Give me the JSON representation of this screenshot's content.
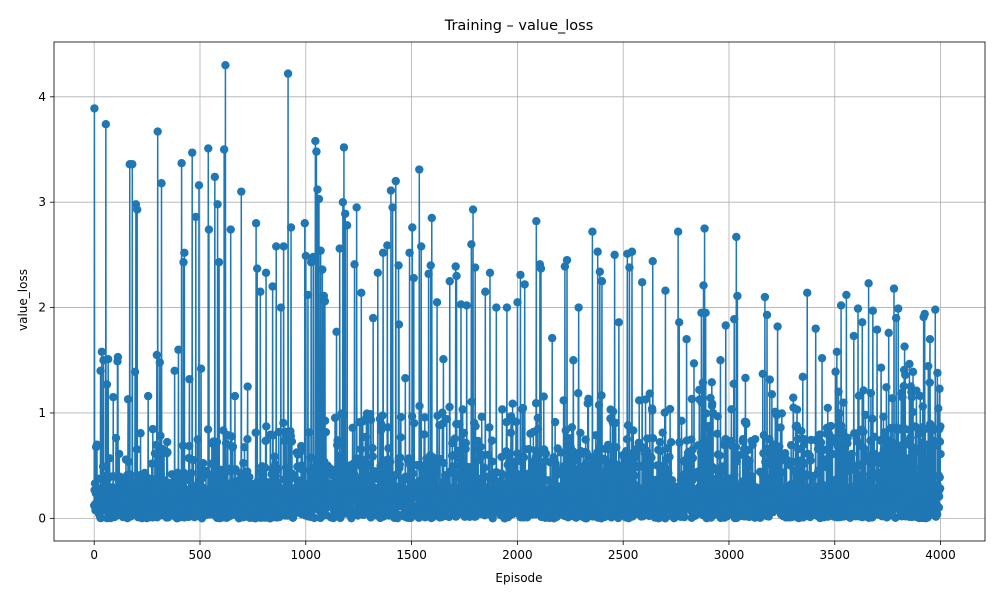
{
  "chart_data": {
    "type": "line",
    "title": "Training – value_loss",
    "xlabel": "Episode",
    "ylabel": "value_loss",
    "xlim": [
      -190,
      4210
    ],
    "ylim": [
      -0.215,
      4.52
    ],
    "xticks": [
      0,
      500,
      1000,
      1500,
      2000,
      2500,
      3000,
      3500,
      4000
    ],
    "yticks": [
      0,
      1,
      2,
      3,
      4
    ],
    "grid": true,
    "marker": "circle",
    "series": [
      {
        "color": "#1f77b4",
        "n_points": 4000,
        "x_range": [
          0,
          4000
        ],
        "baseline_level": 0.3,
        "spikes": [
          [
            1,
            3.89
          ],
          [
            30,
            1.4
          ],
          [
            36,
            1.58
          ],
          [
            44,
            1.5
          ],
          [
            55,
            3.74
          ],
          [
            60,
            1.27
          ],
          [
            66,
            1.51
          ],
          [
            90,
            1.15
          ],
          [
            110,
            1.49
          ],
          [
            112,
            1.53
          ],
          [
            160,
            1.13
          ],
          [
            168,
            3.36
          ],
          [
            180,
            3.36
          ],
          [
            193,
            1.39
          ],
          [
            197,
            2.98
          ],
          [
            203,
            2.93
          ],
          [
            255,
            1.16
          ],
          [
            296,
            1.55
          ],
          [
            300,
            3.67
          ],
          [
            310,
            1.48
          ],
          [
            318,
            3.18
          ],
          [
            380,
            1.4
          ],
          [
            398,
            1.6
          ],
          [
            413,
            3.37
          ],
          [
            422,
            2.43
          ],
          [
            426,
            2.52
          ],
          [
            450,
            1.32
          ],
          [
            463,
            3.47
          ],
          [
            480,
            2.86
          ],
          [
            495,
            3.16
          ],
          [
            505,
            1.42
          ],
          [
            539,
            3.51
          ],
          [
            542,
            2.74
          ],
          [
            570,
            3.24
          ],
          [
            583,
            2.98
          ],
          [
            590,
            2.43
          ],
          [
            614,
            3.5
          ],
          [
            620,
            4.3
          ],
          [
            645,
            2.74
          ],
          [
            665,
            1.16
          ],
          [
            695,
            3.1
          ],
          [
            725,
            1.25
          ],
          [
            765,
            2.8
          ],
          [
            770,
            2.37
          ],
          [
            785,
            2.15
          ],
          [
            812,
            2.33
          ],
          [
            843,
            2.2
          ],
          [
            860,
            2.58
          ],
          [
            882,
            2.0
          ],
          [
            895,
            2.58
          ],
          [
            916,
            4.22
          ],
          [
            930,
            2.76
          ],
          [
            995,
            2.8
          ],
          [
            1000,
            2.49
          ],
          [
            1010,
            2.12
          ],
          [
            1025,
            2.43
          ],
          [
            1035,
            2.48
          ],
          [
            1045,
            3.58
          ],
          [
            1050,
            3.48
          ],
          [
            1055,
            3.12
          ],
          [
            1062,
            3.03
          ],
          [
            1070,
            2.54
          ],
          [
            1078,
            2.36
          ],
          [
            1085,
            2.11
          ],
          [
            1090,
            2.06
          ],
          [
            1145,
            1.77
          ],
          [
            1160,
            2.56
          ],
          [
            1175,
            3.0
          ],
          [
            1180,
            3.52
          ],
          [
            1186,
            2.89
          ],
          [
            1195,
            2.78
          ],
          [
            1240,
            2.95
          ],
          [
            1230,
            2.41
          ],
          [
            1262,
            2.14
          ],
          [
            1318,
            1.9
          ],
          [
            1340,
            2.33
          ],
          [
            1365,
            2.52
          ],
          [
            1385,
            2.59
          ],
          [
            1402,
            3.11
          ],
          [
            1410,
            2.95
          ],
          [
            1425,
            3.2
          ],
          [
            1438,
            2.4
          ],
          [
            1440,
            1.84
          ],
          [
            1470,
            1.33
          ],
          [
            1490,
            2.52
          ],
          [
            1503,
            2.76
          ],
          [
            1510,
            2.28
          ],
          [
            1536,
            3.31
          ],
          [
            1545,
            2.58
          ],
          [
            1580,
            2.32
          ],
          [
            1590,
            2.4
          ],
          [
            1595,
            2.85
          ],
          [
            1620,
            2.05
          ],
          [
            1650,
            1.51
          ],
          [
            1680,
            2.25
          ],
          [
            1708,
            2.39
          ],
          [
            1712,
            2.3
          ],
          [
            1733,
            2.03
          ],
          [
            1760,
            2.02
          ],
          [
            1782,
            2.6
          ],
          [
            1790,
            2.93
          ],
          [
            1800,
            2.38
          ],
          [
            1848,
            2.15
          ],
          [
            1870,
            2.33
          ],
          [
            1900,
            2.0
          ],
          [
            1950,
            2.0
          ],
          [
            2000,
            2.05
          ],
          [
            2015,
            2.31
          ],
          [
            2035,
            2.22
          ],
          [
            2090,
            2.82
          ],
          [
            2107,
            2.41
          ],
          [
            2112,
            2.37
          ],
          [
            2165,
            1.71
          ],
          [
            2225,
            2.39
          ],
          [
            2235,
            2.45
          ],
          [
            2265,
            1.5
          ],
          [
            2290,
            2.0
          ],
          [
            2355,
            2.72
          ],
          [
            2380,
            2.53
          ],
          [
            2390,
            2.34
          ],
          [
            2400,
            2.25
          ],
          [
            2460,
            2.5
          ],
          [
            2480,
            1.86
          ],
          [
            2520,
            2.51
          ],
          [
            2530,
            2.38
          ],
          [
            2542,
            2.53
          ],
          [
            2590,
            2.24
          ],
          [
            2640,
            2.44
          ],
          [
            2700,
            2.16
          ],
          [
            2760,
            2.72
          ],
          [
            2765,
            1.86
          ],
          [
            2800,
            1.7
          ],
          [
            2835,
            1.47
          ],
          [
            2870,
            1.95
          ],
          [
            2880,
            2.21
          ],
          [
            2885,
            2.75
          ],
          [
            2890,
            1.95
          ],
          [
            2960,
            1.5
          ],
          [
            2985,
            1.83
          ],
          [
            3025,
            1.89
          ],
          [
            3035,
            2.67
          ],
          [
            3040,
            2.11
          ],
          [
            3160,
            1.37
          ],
          [
            3170,
            2.1
          ],
          [
            3180,
            1.93
          ],
          [
            3230,
            1.82
          ],
          [
            3370,
            2.14
          ],
          [
            3410,
            1.8
          ],
          [
            3440,
            1.52
          ],
          [
            3510,
            1.58
          ],
          [
            3530,
            2.02
          ],
          [
            3555,
            2.12
          ],
          [
            3590,
            1.73
          ],
          [
            3610,
            1.99
          ],
          [
            3630,
            1.86
          ],
          [
            3660,
            2.23
          ],
          [
            3680,
            1.97
          ],
          [
            3700,
            1.79
          ],
          [
            3755,
            1.76
          ],
          [
            3780,
            2.18
          ],
          [
            3790,
            1.9
          ],
          [
            3800,
            1.99
          ],
          [
            3830,
            1.63
          ],
          [
            3870,
            1.39
          ],
          [
            3920,
            1.91
          ],
          [
            3925,
            1.94
          ],
          [
            3950,
            1.7
          ],
          [
            3975,
            1.98
          ],
          [
            3985,
            1.38
          ],
          [
            3995,
            1.23
          ],
          [
            4000,
            0.61
          ]
        ]
      }
    ]
  }
}
